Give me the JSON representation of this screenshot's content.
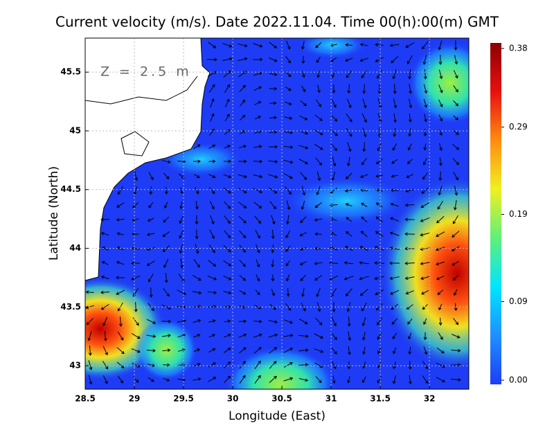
{
  "chart_data": {
    "type": "map",
    "title": "Current velocity (m/s). Date 2022.11.04. Time 00(h):00(m) GMT",
    "annotation": "Z = 2.5 m",
    "x_label": "Longitude (East)",
    "y_label": "Latitude (North)",
    "xlim": [
      28.5,
      32.4
    ],
    "xticks": [
      28.5,
      29,
      29.5,
      30,
      30.5,
      31,
      31.5,
      32
    ],
    "ylim": [
      42.8,
      45.79
    ],
    "yticks": [
      43,
      43.5,
      44,
      44.5,
      45,
      45.5
    ],
    "grid": true,
    "colorbar": {
      "lim": [
        0,
        0.38
      ],
      "ticks": [
        {
          "value": 0,
          "label": "0.00"
        },
        0.09,
        0.19,
        0.29,
        0.38
      ],
      "colors": [
        "#1e3cf5",
        "#1e90ff",
        "#00e5ff",
        "#5ff07a",
        "#f0f020",
        "#ff8c10",
        "#e81010",
        "#8c0000"
      ]
    }
  }
}
